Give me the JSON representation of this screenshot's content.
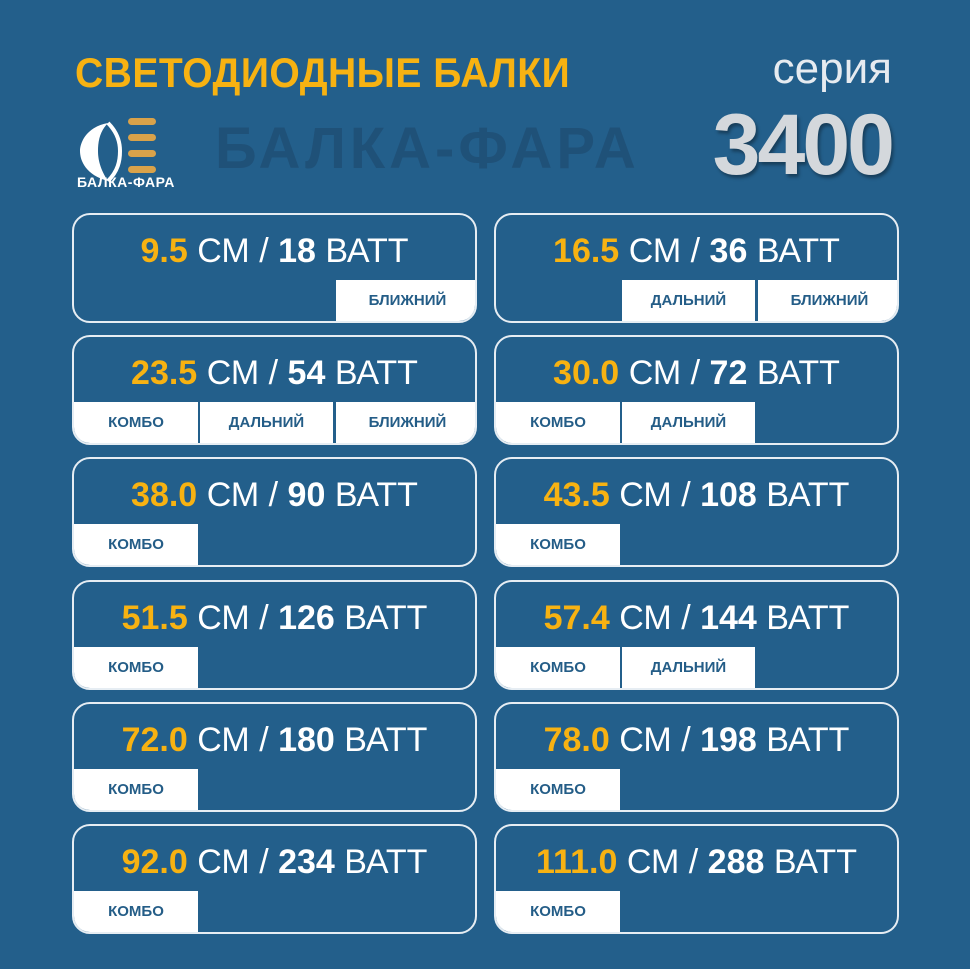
{
  "header": {
    "title": "СВЕТОДИОДНЫЕ БАЛКИ",
    "series_label": "серия",
    "series_number": "3400"
  },
  "logo": {
    "text": "БАЛКА-ФАРА",
    "watermark": "БАЛКА-ФАРА"
  },
  "colors": {
    "background": "#235f8b",
    "accent": "#f7b212",
    "tab_text": "#245d87"
  },
  "units": {
    "length": "СМ",
    "separator": "/",
    "power": "ВАТТ"
  },
  "modes": {
    "combo": "КОМБО",
    "far": "ДАЛЬНИЙ",
    "near": "БЛИЖНИЙ"
  },
  "cards": [
    {
      "length": "9.5",
      "power": "18",
      "modes": [
        "near"
      ]
    },
    {
      "length": "16.5",
      "power": "36",
      "modes": [
        "far",
        "near"
      ]
    },
    {
      "length": "23.5",
      "power": "54",
      "modes": [
        "combo",
        "far",
        "near"
      ]
    },
    {
      "length": "30.0",
      "power": "72",
      "modes": [
        "combo",
        "far"
      ]
    },
    {
      "length": "38.0",
      "power": "90",
      "modes": [
        "combo"
      ]
    },
    {
      "length": "43.5",
      "power": "108",
      "modes": [
        "combo"
      ]
    },
    {
      "length": "51.5",
      "power": "126",
      "modes": [
        "combo"
      ]
    },
    {
      "length": "57.4",
      "power": "144",
      "modes": [
        "combo",
        "far"
      ]
    },
    {
      "length": "72.0",
      "power": "180",
      "modes": [
        "combo"
      ]
    },
    {
      "length": "78.0",
      "power": "198",
      "modes": [
        "combo"
      ]
    },
    {
      "length": "92.0",
      "power": "234",
      "modes": [
        "combo"
      ]
    },
    {
      "length": "111.0",
      "power": "288",
      "modes": [
        "combo"
      ]
    }
  ]
}
